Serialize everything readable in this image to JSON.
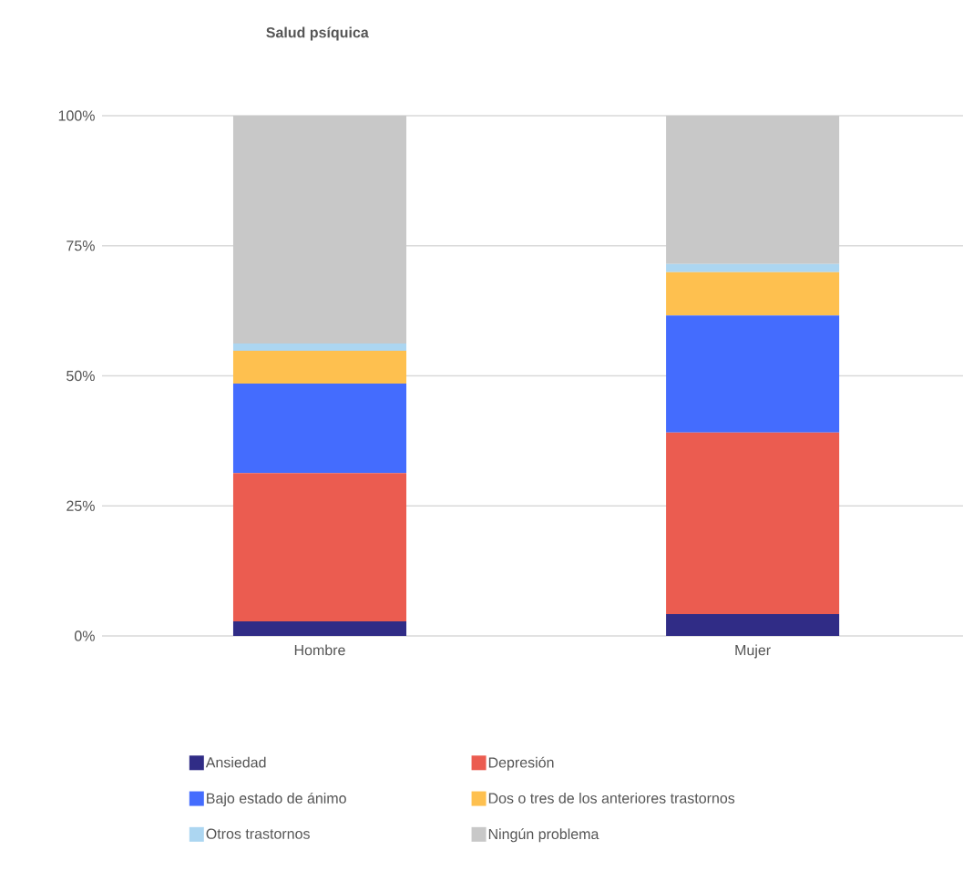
{
  "chart_data": {
    "type": "bar",
    "title": "Salud psíquica",
    "stacked": true,
    "categories": [
      "Hombre",
      "Mujer"
    ],
    "series": [
      {
        "name": "Ansiedad",
        "color": "#302c86",
        "values": [
          2.8,
          4.2
        ]
      },
      {
        "name": "Depresión",
        "color": "#eb5c50",
        "values": [
          28.5,
          34.9
        ]
      },
      {
        "name": "Bajo estado de ánimo",
        "color": "#446cfe",
        "values": [
          17.2,
          22.5
        ]
      },
      {
        "name": "Dos o tres de los anteriores trastornos",
        "color": "#fec04f",
        "values": [
          6.3,
          8.3
        ]
      },
      {
        "name": "Otros trastornos",
        "color": "#acd6f1",
        "values": [
          1.4,
          1.6
        ]
      },
      {
        "name": "Ningún problema",
        "color": "#c8c8c8",
        "values": [
          43.8,
          28.5
        ]
      }
    ],
    "ylim": [
      0,
      100
    ],
    "yticks": [
      {
        "value": 0,
        "label": "0%"
      },
      {
        "value": 25,
        "label": "25%"
      },
      {
        "value": 50,
        "label": "50%"
      },
      {
        "value": 75,
        "label": "75%"
      },
      {
        "value": 100,
        "label": "100%"
      }
    ],
    "grid": "y",
    "legend": "bottom"
  }
}
